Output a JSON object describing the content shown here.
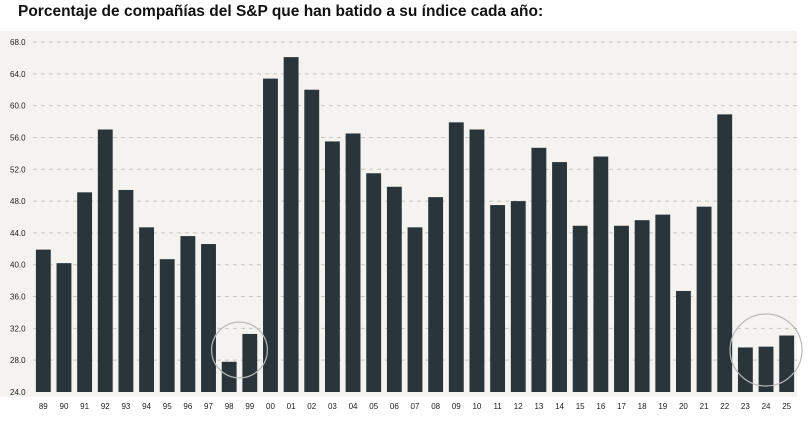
{
  "chart_data": {
    "type": "bar",
    "title": "Porcentaje de compañías del S&P que han batido a su índice cada año:",
    "xlabel": "",
    "ylabel": "",
    "ylim": [
      24.0,
      68.0
    ],
    "yticks": [
      "68.0",
      "64.0",
      "60.0",
      "56.0",
      "52.0",
      "48.0",
      "44.0",
      "40.0",
      "36.0",
      "32.0",
      "28.0",
      "24.0"
    ],
    "grid": true,
    "bar_color": "#29353b",
    "background_color": "#f5f3ef",
    "categories": [
      "89",
      "90",
      "91",
      "92",
      "93",
      "94",
      "95",
      "96",
      "97",
      "98",
      "99",
      "00",
      "01",
      "02",
      "03",
      "04",
      "05",
      "06",
      "07",
      "08",
      "09",
      "10",
      "11",
      "12",
      "13",
      "14",
      "15",
      "16",
      "17",
      "18",
      "19",
      "20",
      "21",
      "22",
      "23",
      "24",
      "25"
    ],
    "values": [
      41.9,
      40.2,
      49.1,
      57.0,
      49.4,
      44.7,
      40.7,
      43.6,
      42.6,
      27.8,
      31.3,
      63.4,
      66.1,
      62.0,
      55.5,
      56.5,
      51.5,
      49.8,
      44.7,
      48.5,
      57.9,
      57.0,
      47.5,
      48.0,
      54.7,
      52.9,
      44.9,
      53.6,
      44.9,
      45.6,
      46.3,
      36.7,
      47.3,
      58.9,
      29.6,
      29.7,
      31.1
    ],
    "annotations": [
      {
        "type": "circle",
        "around": [
          "98",
          "99"
        ]
      },
      {
        "type": "circle",
        "around": [
          "23",
          "24",
          "25"
        ]
      }
    ]
  }
}
